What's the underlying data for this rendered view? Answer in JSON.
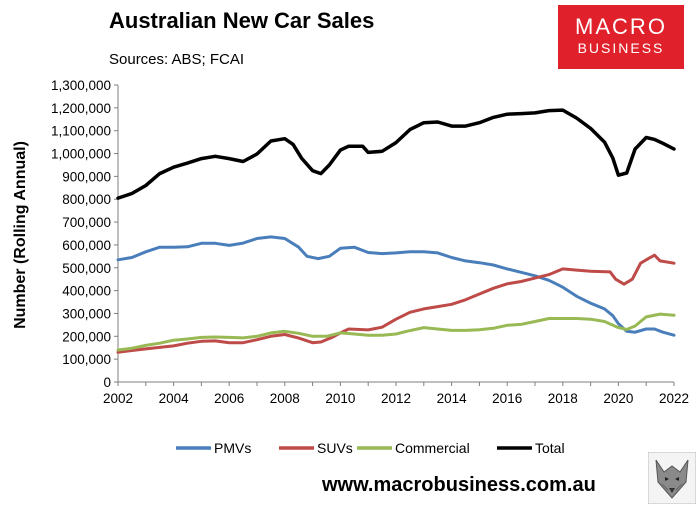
{
  "header": {
    "title": "Australian New Car Sales",
    "subtitle": "Sources: ABS; FCAI"
  },
  "logo": {
    "line1": "MACRO",
    "line2": "BUSINESS",
    "color": "#e0202a"
  },
  "footer": {
    "url": "www.macrobusiness.com.au",
    "icon": "wolf-icon"
  },
  "chart_data": {
    "type": "line",
    "title": "Australian New Car Sales",
    "xlabel": "",
    "ylabel": "Number (Rolling Annual)",
    "xlim": [
      2002,
      2022
    ],
    "ylim": [
      0,
      1300000
    ],
    "grid": false,
    "legend_position": "bottom",
    "x_ticks": [
      2002,
      2004,
      2006,
      2008,
      2010,
      2012,
      2014,
      2016,
      2018,
      2020,
      2022
    ],
    "y_ticks": [
      0,
      100000,
      200000,
      300000,
      400000,
      500000,
      600000,
      700000,
      800000,
      900000,
      1000000,
      1100000,
      1200000,
      1300000
    ],
    "y_tick_labels": [
      "0",
      "100,000",
      "200,000",
      "300,000",
      "400,000",
      "500,000",
      "600,000",
      "700,000",
      "800,000",
      "900,000",
      "1,000,000",
      "1,100,000",
      "1,200,000",
      "1,300,000"
    ],
    "x_tick_labels": [
      "2002",
      "2004",
      "2006",
      "2008",
      "2010",
      "2012",
      "2014",
      "2016",
      "2018",
      "2020",
      "2022"
    ],
    "series": [
      {
        "name": "PMVs",
        "color": "#4a7ebb",
        "points": [
          [
            2002,
            535000
          ],
          [
            2002.5,
            545000
          ],
          [
            2003,
            570000
          ],
          [
            2003.5,
            590000
          ],
          [
            2004,
            590000
          ],
          [
            2004.5,
            592000
          ],
          [
            2005,
            607000
          ],
          [
            2005.5,
            607000
          ],
          [
            2006,
            598000
          ],
          [
            2006.5,
            608000
          ],
          [
            2007,
            628000
          ],
          [
            2007.5,
            635000
          ],
          [
            2008,
            628000
          ],
          [
            2008.5,
            590000
          ],
          [
            2008.8,
            550000
          ],
          [
            2009.2,
            540000
          ],
          [
            2009.6,
            550000
          ],
          [
            2010,
            585000
          ],
          [
            2010.5,
            590000
          ],
          [
            2011,
            567000
          ],
          [
            2011.5,
            562000
          ],
          [
            2012,
            565000
          ],
          [
            2012.5,
            570000
          ],
          [
            2013,
            570000
          ],
          [
            2013.5,
            565000
          ],
          [
            2014,
            545000
          ],
          [
            2014.5,
            530000
          ],
          [
            2015,
            522000
          ],
          [
            2015.5,
            512000
          ],
          [
            2016,
            495000
          ],
          [
            2016.5,
            480000
          ],
          [
            2017,
            465000
          ],
          [
            2017.5,
            445000
          ],
          [
            2018,
            415000
          ],
          [
            2018.5,
            375000
          ],
          [
            2019,
            345000
          ],
          [
            2019.5,
            320000
          ],
          [
            2019.8,
            290000
          ],
          [
            2020,
            255000
          ],
          [
            2020.3,
            222000
          ],
          [
            2020.6,
            218000
          ],
          [
            2021,
            232000
          ],
          [
            2021.3,
            232000
          ],
          [
            2021.6,
            218000
          ],
          [
            2022,
            205000
          ]
        ]
      },
      {
        "name": "SUVs",
        "color": "#be4b48",
        "points": [
          [
            2002,
            130000
          ],
          [
            2002.5,
            138000
          ],
          [
            2003,
            145000
          ],
          [
            2004,
            158000
          ],
          [
            2004.5,
            170000
          ],
          [
            2005,
            178000
          ],
          [
            2005.5,
            180000
          ],
          [
            2006,
            172000
          ],
          [
            2006.5,
            172000
          ],
          [
            2007,
            185000
          ],
          [
            2007.5,
            200000
          ],
          [
            2008,
            208000
          ],
          [
            2008.5,
            192000
          ],
          [
            2009,
            172000
          ],
          [
            2009.3,
            175000
          ],
          [
            2009.7,
            195000
          ],
          [
            2010,
            215000
          ],
          [
            2010.3,
            232000
          ],
          [
            2011,
            228000
          ],
          [
            2011.5,
            240000
          ],
          [
            2012,
            275000
          ],
          [
            2012.5,
            305000
          ],
          [
            2013,
            320000
          ],
          [
            2013.5,
            330000
          ],
          [
            2014,
            340000
          ],
          [
            2014.5,
            360000
          ],
          [
            2015,
            385000
          ],
          [
            2015.5,
            410000
          ],
          [
            2016,
            430000
          ],
          [
            2016.5,
            440000
          ],
          [
            2017,
            455000
          ],
          [
            2017.5,
            470000
          ],
          [
            2018,
            495000
          ],
          [
            2018.5,
            490000
          ],
          [
            2019,
            485000
          ],
          [
            2019.7,
            482000
          ],
          [
            2019.9,
            450000
          ],
          [
            2020.2,
            428000
          ],
          [
            2020.5,
            450000
          ],
          [
            2020.8,
            520000
          ],
          [
            2021.1,
            542000
          ],
          [
            2021.3,
            555000
          ],
          [
            2021.5,
            530000
          ],
          [
            2022,
            520000
          ]
        ]
      },
      {
        "name": "Commercial",
        "color": "#98b954",
        "points": [
          [
            2002,
            140000
          ],
          [
            2002.5,
            148000
          ],
          [
            2003,
            160000
          ],
          [
            2003.5,
            170000
          ],
          [
            2004,
            183000
          ],
          [
            2004.5,
            188000
          ],
          [
            2005,
            195000
          ],
          [
            2005.5,
            197000
          ],
          [
            2006,
            195000
          ],
          [
            2006.5,
            193000
          ],
          [
            2007,
            200000
          ],
          [
            2007.5,
            215000
          ],
          [
            2008,
            222000
          ],
          [
            2008.5,
            213000
          ],
          [
            2009,
            200000
          ],
          [
            2009.5,
            200000
          ],
          [
            2010,
            215000
          ],
          [
            2010.5,
            210000
          ],
          [
            2011,
            205000
          ],
          [
            2011.5,
            205000
          ],
          [
            2012,
            210000
          ],
          [
            2012.5,
            225000
          ],
          [
            2013,
            238000
          ],
          [
            2013.5,
            232000
          ],
          [
            2014,
            226000
          ],
          [
            2014.5,
            226000
          ],
          [
            2015,
            229000
          ],
          [
            2015.5,
            235000
          ],
          [
            2016,
            248000
          ],
          [
            2016.5,
            252000
          ],
          [
            2017,
            265000
          ],
          [
            2017.5,
            278000
          ],
          [
            2018,
            278000
          ],
          [
            2018.5,
            278000
          ],
          [
            2019,
            275000
          ],
          [
            2019.5,
            265000
          ],
          [
            2020,
            238000
          ],
          [
            2020.3,
            230000
          ],
          [
            2020.6,
            245000
          ],
          [
            2021,
            285000
          ],
          [
            2021.5,
            297000
          ],
          [
            2022,
            292000
          ]
        ]
      },
      {
        "name": "Total",
        "color": "#000000",
        "points": [
          [
            2002,
            805000
          ],
          [
            2002.5,
            825000
          ],
          [
            2003,
            860000
          ],
          [
            2003.5,
            912000
          ],
          [
            2004,
            940000
          ],
          [
            2004.5,
            958000
          ],
          [
            2005,
            978000
          ],
          [
            2005.5,
            988000
          ],
          [
            2006,
            978000
          ],
          [
            2006.5,
            965000
          ],
          [
            2007,
            998000
          ],
          [
            2007.5,
            1055000
          ],
          [
            2008,
            1065000
          ],
          [
            2008.3,
            1040000
          ],
          [
            2008.6,
            980000
          ],
          [
            2009,
            925000
          ],
          [
            2009.3,
            912000
          ],
          [
            2009.6,
            950000
          ],
          [
            2010,
            1015000
          ],
          [
            2010.3,
            1032000
          ],
          [
            2010.8,
            1032000
          ],
          [
            2011,
            1005000
          ],
          [
            2011.5,
            1010000
          ],
          [
            2012,
            1048000
          ],
          [
            2012.5,
            1105000
          ],
          [
            2013,
            1135000
          ],
          [
            2013.5,
            1138000
          ],
          [
            2014,
            1120000
          ],
          [
            2014.5,
            1120000
          ],
          [
            2015,
            1135000
          ],
          [
            2015.5,
            1158000
          ],
          [
            2016,
            1172000
          ],
          [
            2016.5,
            1175000
          ],
          [
            2017,
            1178000
          ],
          [
            2017.5,
            1188000
          ],
          [
            2018,
            1190000
          ],
          [
            2018.5,
            1155000
          ],
          [
            2019,
            1110000
          ],
          [
            2019.5,
            1050000
          ],
          [
            2019.8,
            980000
          ],
          [
            2020,
            905000
          ],
          [
            2020.3,
            915000
          ],
          [
            2020.6,
            1020000
          ],
          [
            2021,
            1070000
          ],
          [
            2021.3,
            1062000
          ],
          [
            2021.6,
            1045000
          ],
          [
            2022,
            1020000
          ]
        ]
      }
    ]
  }
}
